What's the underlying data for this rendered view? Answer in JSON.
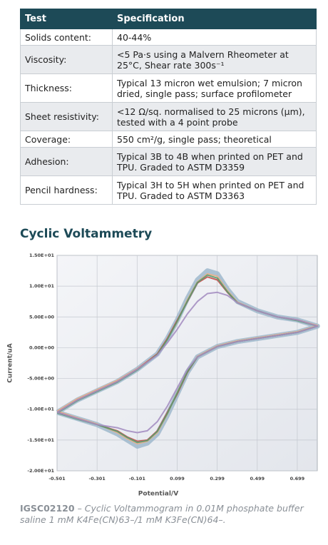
{
  "table": {
    "header": [
      "Test",
      "Specification"
    ],
    "rows": [
      [
        "Solids content:",
        "40-44%"
      ],
      [
        "Viscosity:",
        "<5 Pa·s using a Malvern Rheometer at 25°C, Shear rate 300s⁻¹"
      ],
      [
        "Thickness:",
        "Typical 13 micron wet emulsion; 7 micron dried, single pass; surface profilometer"
      ],
      [
        "Sheet resistivity:",
        "<12 Ω/sq. normalised to 25 microns (µm), tested with a 4 point probe"
      ],
      [
        "Coverage:",
        "550 cm²/g, single pass; theoretical"
      ],
      [
        "Adhesion:",
        "Typical 3B to 4B when printed on PET and TPU. Graded to ASTM D3359"
      ],
      [
        "Pencil hardness:",
        "Typical 3H to 5H when printed on PET and TPU. Graded to ASTM D3363"
      ]
    ]
  },
  "heading": "Cyclic Voltammetry",
  "chart_data": {
    "type": "line",
    "x_label": "Potential/V",
    "y_label": "Current/uA",
    "x": [
      -0.5,
      -0.4,
      -0.3,
      -0.2,
      -0.1,
      0.0,
      0.05,
      0.1,
      0.15,
      0.2,
      0.25,
      0.3,
      0.35,
      0.4,
      0.5,
      0.6,
      0.7,
      0.8,
      0.7,
      0.6,
      0.5,
      0.4,
      0.3,
      0.2,
      0.15,
      0.1,
      0.05,
      0.0,
      -0.05,
      -0.1,
      -0.15,
      -0.2,
      -0.3,
      -0.4,
      -0.5
    ],
    "series": [
      {
        "color": "#9fb8cc",
        "values": [
          -10.5,
          -8.5,
          -7,
          -5.5,
          -3.5,
          -1,
          1.5,
          4.5,
          8,
          11,
          12.5,
          12,
          9.5,
          7.5,
          6,
          5,
          4.5,
          3.5,
          2.5,
          2,
          1.5,
          1,
          0.2,
          -1.5,
          -4,
          -7.5,
          -11,
          -14,
          -15.5,
          -16,
          -15,
          -14,
          -12.5,
          -11.5,
          -10.5
        ]
      },
      {
        "color": "#e8b08a",
        "values": [
          -10.3,
          -8.3,
          -6.8,
          -5.3,
          -3.4,
          -1,
          1.4,
          4.2,
          7.8,
          10.7,
          12,
          11.6,
          9.3,
          7.4,
          6,
          5,
          4.5,
          3.6,
          2.6,
          2.1,
          1.6,
          1.1,
          0.3,
          -1.4,
          -3.8,
          -7.2,
          -10.8,
          -13.8,
          -15.2,
          -15.6,
          -14.8,
          -13.8,
          -12.4,
          -11.4,
          -10.3
        ]
      },
      {
        "color": "#c0504d",
        "values": [
          -10.5,
          -8.5,
          -7,
          -5.5,
          -3.5,
          -1,
          1.5,
          4.5,
          7.5,
          10.5,
          11.5,
          11,
          9,
          7.3,
          6,
          5,
          4.5,
          3.5,
          2.5,
          2,
          1.5,
          1,
          0.2,
          -1.5,
          -4,
          -7.5,
          -10.5,
          -13.5,
          -15,
          -15.2,
          -14.5,
          -13.5,
          -12.5,
          -11.5,
          -10.5
        ]
      },
      {
        "color": "#5a9a6e",
        "values": [
          -10.6,
          -8.6,
          -7.1,
          -5.6,
          -3.6,
          -1.1,
          1.3,
          4.3,
          7.6,
          10.6,
          11.8,
          11.3,
          9.1,
          7.3,
          6,
          5,
          4.4,
          3.5,
          2.5,
          2,
          1.5,
          1,
          0.2,
          -1.5,
          -3.9,
          -7.3,
          -10.7,
          -13.6,
          -15.1,
          -15.4,
          -14.6,
          -13.6,
          -12.5,
          -11.6,
          -10.6
        ]
      },
      {
        "color": "#a58fc2",
        "values": [
          -10.5,
          -8.5,
          -7,
          -5.5,
          -3.5,
          -1.2,
          0.8,
          3,
          5.5,
          7.5,
          8.8,
          9,
          8.5,
          7.3,
          6,
          5,
          4.5,
          3.5,
          2.5,
          2,
          1.5,
          1,
          0.2,
          -1.5,
          -3.5,
          -6.5,
          -9.5,
          -12,
          -13.5,
          -13.8,
          -13.5,
          -13,
          -12.5,
          -11.5,
          -10.5
        ]
      }
    ],
    "xlim": [
      -0.501,
      0.799
    ],
    "ylim": [
      -20,
      15
    ],
    "xticks": [
      -0.501,
      -0.301,
      -0.101,
      0.099,
      0.299,
      0.499,
      0.699
    ],
    "yticks": [
      {
        "value": 15,
        "label": "1.50E+01"
      },
      {
        "value": 10,
        "label": "1.00E+01"
      },
      {
        "value": 5,
        "label": "5.00E+00"
      },
      {
        "value": 0,
        "label": "0.00E+00"
      },
      {
        "value": -5,
        "label": "-5.00E+00"
      },
      {
        "value": -10,
        "label": "-1.00E+01"
      },
      {
        "value": -15,
        "label": "-1.50E+01"
      },
      {
        "value": -20,
        "label": "-2.00E+01"
      }
    ],
    "grid": true
  },
  "caption": {
    "id": "IGSC02120",
    "text": "– Cyclic Voltammogram in 0.01M phosphate buffer saline 1 mM K4Fe(CN)63–/1 mM K3Fe(CN)64–."
  }
}
